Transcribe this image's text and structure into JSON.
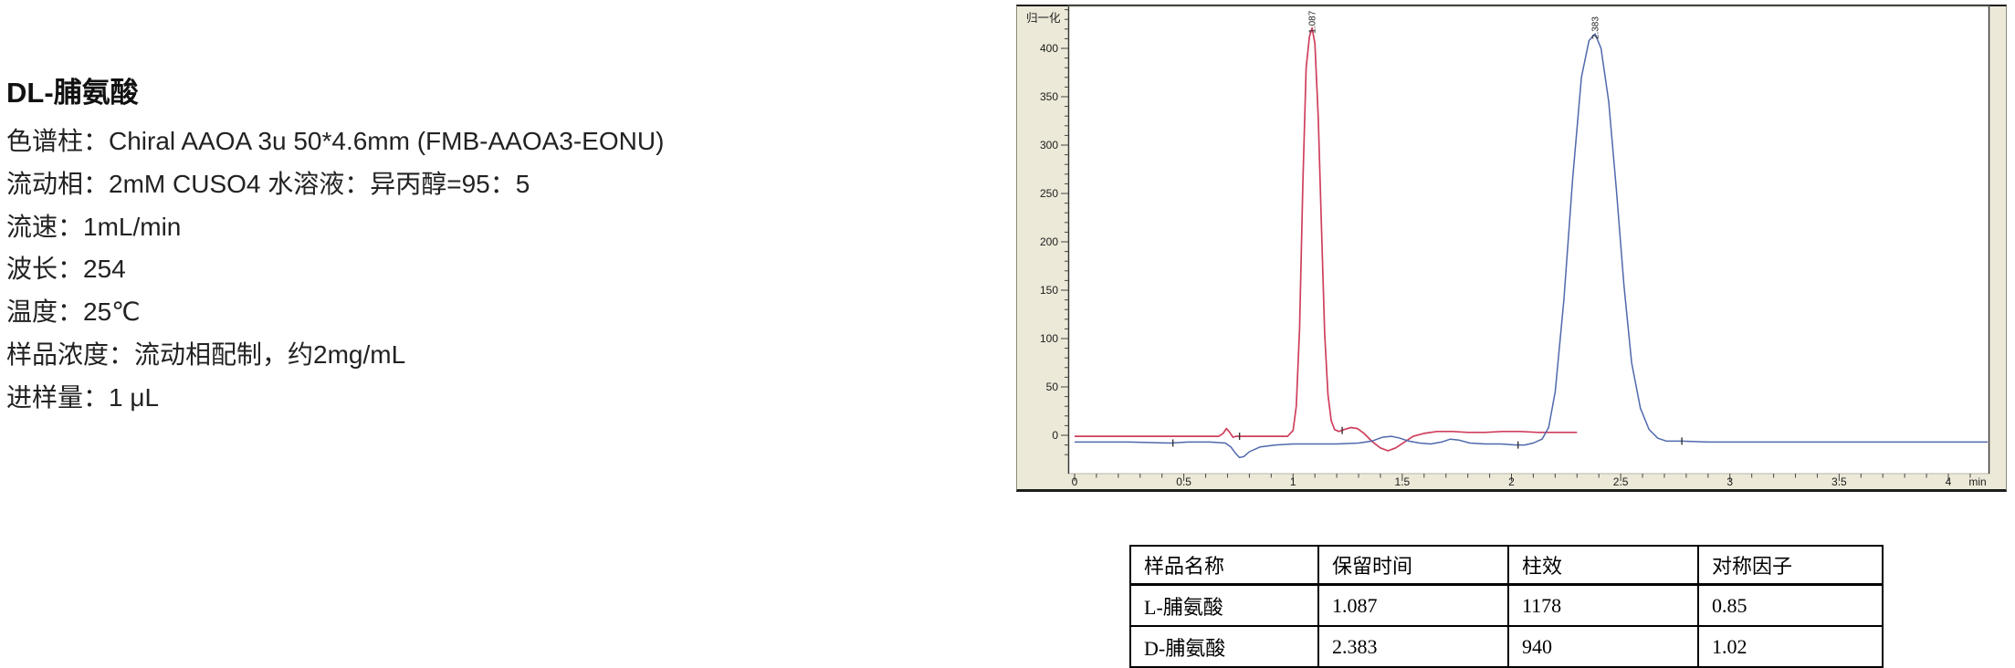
{
  "info": {
    "title": "DL-脯氨酸",
    "lines": [
      "色谱柱：Chiral AAOA 3u 50*4.6mm (FMB-AAOA3-EONU)",
      "流动相：2mM CUSO4 水溶液：异丙醇=95：5",
      "流速：1mL/min",
      "波长：254",
      "温度：25℃",
      "样品浓度：流动相配制，约2mg/mL",
      "进样量：1 μL"
    ]
  },
  "chart_data": {
    "type": "line",
    "y_axis_title": "归一化",
    "x_unit": "min",
    "xlim": [
      0,
      4.19
    ],
    "ylim": [
      -30,
      443
    ],
    "grid": false,
    "legend": "none",
    "x_ticks": [
      "0",
      "0.5",
      "1",
      "1.5",
      "2",
      "2.5",
      "3",
      "3.5",
      "4"
    ],
    "y_ticks": [
      "0",
      "50",
      "100",
      "150",
      "200",
      "250",
      "300",
      "350",
      "400"
    ],
    "peak_labels": [
      {
        "text": "1.087",
        "t": 1.087,
        "apex": 421
      },
      {
        "text": "2.383",
        "t": 2.383,
        "apex": 415
      }
    ],
    "colors": {
      "red_trace": "#cf3f5e",
      "blue_trace": "#4f68ac",
      "panel_bg": "#ece9d8",
      "plot_bg": "#ffffff",
      "axis": "#3a3a3a",
      "tick_text": "#1c1c1c"
    },
    "series": [
      {
        "name": "L-脯氨酸",
        "color": "#cf3f5e",
        "points": [
          [
            0,
            -1
          ],
          [
            0.35,
            -1
          ],
          [
            0.55,
            -1
          ],
          [
            0.66,
            -1
          ],
          [
            0.68,
            2
          ],
          [
            0.695,
            7
          ],
          [
            0.71,
            3
          ],
          [
            0.725,
            -2
          ],
          [
            0.74,
            -1
          ],
          [
            0.78,
            -1
          ],
          [
            0.85,
            -1
          ],
          [
            0.92,
            -1
          ],
          [
            0.975,
            -1
          ],
          [
            1.0,
            5
          ],
          [
            1.015,
            30
          ],
          [
            1.03,
            110
          ],
          [
            1.045,
            260
          ],
          [
            1.06,
            380
          ],
          [
            1.075,
            412
          ],
          [
            1.087,
            421
          ],
          [
            1.1,
            405
          ],
          [
            1.115,
            330
          ],
          [
            1.13,
            215
          ],
          [
            1.145,
            105
          ],
          [
            1.16,
            42
          ],
          [
            1.175,
            15
          ],
          [
            1.19,
            6
          ],
          [
            1.21,
            4
          ],
          [
            1.235,
            6
          ],
          [
            1.265,
            8
          ],
          [
            1.295,
            7
          ],
          [
            1.325,
            2
          ],
          [
            1.36,
            -6
          ],
          [
            1.4,
            -13
          ],
          [
            1.435,
            -16
          ],
          [
            1.47,
            -13
          ],
          [
            1.51,
            -7
          ],
          [
            1.55,
            -1
          ],
          [
            1.6,
            2
          ],
          [
            1.66,
            4
          ],
          [
            1.73,
            4
          ],
          [
            1.8,
            3
          ],
          [
            1.88,
            3
          ],
          [
            1.96,
            4
          ],
          [
            2.04,
            4
          ],
          [
            2.12,
            3
          ],
          [
            2.22,
            3
          ],
          [
            2.3,
            3
          ]
        ]
      },
      {
        "name": "D-脯氨酸",
        "color": "#4f68ac",
        "points": [
          [
            0,
            -7
          ],
          [
            0.25,
            -7
          ],
          [
            0.44,
            -8
          ],
          [
            0.52,
            -7
          ],
          [
            0.62,
            -7
          ],
          [
            0.69,
            -8
          ],
          [
            0.715,
            -12
          ],
          [
            0.735,
            -18
          ],
          [
            0.755,
            -23
          ],
          [
            0.775,
            -22
          ],
          [
            0.8,
            -17
          ],
          [
            0.85,
            -12
          ],
          [
            0.92,
            -10
          ],
          [
            1.0,
            -9
          ],
          [
            1.1,
            -9
          ],
          [
            1.2,
            -9
          ],
          [
            1.3,
            -8
          ],
          [
            1.36,
            -6
          ],
          [
            1.41,
            -2
          ],
          [
            1.45,
            -1
          ],
          [
            1.49,
            -3
          ],
          [
            1.53,
            -6
          ],
          [
            1.58,
            -8
          ],
          [
            1.63,
            -9
          ],
          [
            1.68,
            -7
          ],
          [
            1.72,
            -4
          ],
          [
            1.76,
            -5
          ],
          [
            1.81,
            -8
          ],
          [
            1.88,
            -9
          ],
          [
            1.95,
            -9
          ],
          [
            2.02,
            -10
          ],
          [
            2.06,
            -10
          ],
          [
            2.1,
            -8
          ],
          [
            2.14,
            -4
          ],
          [
            2.17,
            8
          ],
          [
            2.2,
            45
          ],
          [
            2.24,
            140
          ],
          [
            2.28,
            265
          ],
          [
            2.32,
            370
          ],
          [
            2.355,
            408
          ],
          [
            2.383,
            415
          ],
          [
            2.41,
            400
          ],
          [
            2.445,
            345
          ],
          [
            2.48,
            255
          ],
          [
            2.515,
            155
          ],
          [
            2.55,
            75
          ],
          [
            2.59,
            28
          ],
          [
            2.63,
            6
          ],
          [
            2.67,
            -3
          ],
          [
            2.71,
            -6
          ],
          [
            2.78,
            -6
          ],
          [
            2.9,
            -7
          ],
          [
            3.1,
            -7
          ],
          [
            3.4,
            -7
          ],
          [
            3.8,
            -7
          ],
          [
            4.18,
            -7
          ]
        ]
      }
    ],
    "integration_marks": [
      {
        "t": 0.755,
        "v": -1,
        "color": "#333333"
      },
      {
        "t": 1.225,
        "v": 5,
        "color": "#333333"
      },
      {
        "t": 0.45,
        "v": -8,
        "color": "#333333"
      },
      {
        "t": 2.03,
        "v": -10,
        "color": "#333333"
      },
      {
        "t": 2.78,
        "v": -6,
        "color": "#333333"
      }
    ]
  },
  "table": {
    "headers": [
      "样品名称",
      "保留时间",
      "柱效",
      "对称因子"
    ],
    "rows": [
      [
        "L-脯氨酸",
        "1.087",
        "1178",
        "0.85"
      ],
      [
        "D-脯氨酸",
        "2.383",
        "940",
        "1.02"
      ]
    ]
  }
}
